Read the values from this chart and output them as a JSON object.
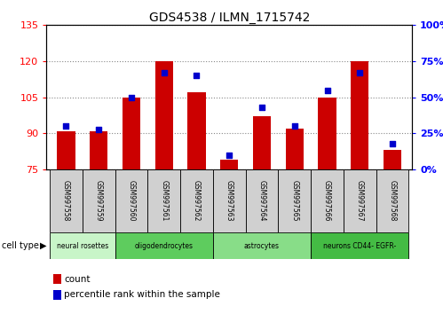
{
  "title": "GDS4538 / ILMN_1715742",
  "samples": [
    "GSM997558",
    "GSM997559",
    "GSM997560",
    "GSM997561",
    "GSM997562",
    "GSM997563",
    "GSM997564",
    "GSM997565",
    "GSM997566",
    "GSM997567",
    "GSM997568"
  ],
  "counts": [
    91,
    91,
    105,
    120,
    107,
    79,
    97,
    92,
    105,
    120,
    83
  ],
  "percentile_ranks": [
    30,
    28,
    50,
    67,
    65,
    10,
    43,
    30,
    55,
    67,
    18
  ],
  "cell_types": [
    {
      "label": "neural rosettes",
      "start": 0,
      "end": 2,
      "color": "#c8f5c8"
    },
    {
      "label": "oligodendrocytes",
      "start": 2,
      "end": 5,
      "color": "#5ecc5e"
    },
    {
      "label": "astrocytes",
      "start": 5,
      "end": 8,
      "color": "#88dd88"
    },
    {
      "label": "neurons CD44- EGFR-",
      "start": 8,
      "end": 11,
      "color": "#44bb44"
    }
  ],
  "ylim_left": [
    75,
    135
  ],
  "ylim_right": [
    0,
    100
  ],
  "yticks_left": [
    75,
    90,
    105,
    120,
    135
  ],
  "yticks_right": [
    0,
    25,
    50,
    75,
    100
  ],
  "bar_color": "#cc0000",
  "dot_color": "#0000cc",
  "bar_width": 0.55,
  "bar_bottom": 75,
  "grid_color": "#888888",
  "bg_color": "#ffffff",
  "label_count": "count",
  "label_percentile": "percentile rank within the sample",
  "label_box_color": "#d0d0d0",
  "cell_type_text": "cell type"
}
